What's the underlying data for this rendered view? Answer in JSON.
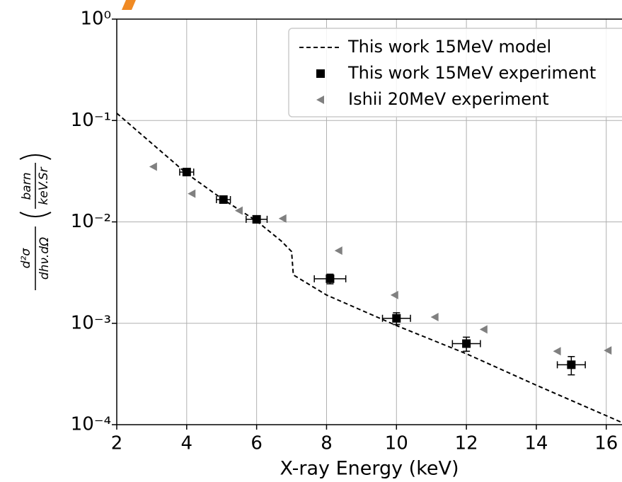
{
  "chart_data": {
    "type": "scatter",
    "xlabel": "X-ray Energy (keV)",
    "ylabel": {
      "numerator": "d²σ",
      "denominator": "dhν.dΩ",
      "unit_numerator": "barn",
      "unit_denominator": "keV.Sr"
    },
    "xlim": [
      2,
      16.45
    ],
    "ylim": [
      0.0001,
      1
    ],
    "log_y": true,
    "grid": true,
    "legend": "upper right",
    "xticks": [
      2,
      4,
      6,
      8,
      10,
      12,
      14,
      16
    ],
    "yticks": [
      {
        "value": 0.0001,
        "label": "10⁻⁴"
      },
      {
        "value": 0.001,
        "label": "10⁻³"
      },
      {
        "value": 0.01,
        "label": "10⁻²"
      },
      {
        "value": 0.1,
        "label": "10⁻¹"
      },
      {
        "value": 1,
        "label": "10⁰"
      }
    ],
    "series": [
      {
        "name": "This work 15MeV model",
        "kind": "line",
        "style": "dashed",
        "color": "#000000",
        "x": [
          2,
          4,
          5,
          6,
          6.7,
          7,
          7.05,
          8,
          10,
          12,
          14,
          16.45
        ],
        "values": [
          0.118,
          0.03,
          0.017,
          0.0102,
          0.0065,
          0.0051,
          0.003,
          0.0019,
          0.00095,
          0.0005,
          0.000245,
          0.000105
        ]
      },
      {
        "name": "This work 15MeV experiment",
        "kind": "square",
        "color": "#000000",
        "x": [
          4,
          5.05,
          6,
          8.1,
          10,
          12,
          15
        ],
        "values": [
          0.031,
          0.0166,
          0.0106,
          0.00275,
          0.00112,
          0.00063,
          0.00039
        ],
        "xerr": [
          0.2,
          0.2,
          0.3,
          0.45,
          0.4,
          0.4,
          0.4
        ],
        "yerr": [
          0.002,
          0.0012,
          0.0008,
          0.0003,
          0.00015,
          0.0001,
          8e-05
        ]
      },
      {
        "name": "Ishii 20MeV experiment",
        "kind": "triangle-left",
        "color": "#808080",
        "x": [
          3.05,
          4.15,
          5.5,
          6.75,
          8.35,
          9.95,
          11.1,
          12.5,
          14.6,
          16.05
        ],
        "values": [
          0.035,
          0.019,
          0.0129,
          0.0108,
          0.0052,
          0.0019,
          0.00115,
          0.00087,
          0.00053,
          0.00054
        ]
      }
    ]
  }
}
